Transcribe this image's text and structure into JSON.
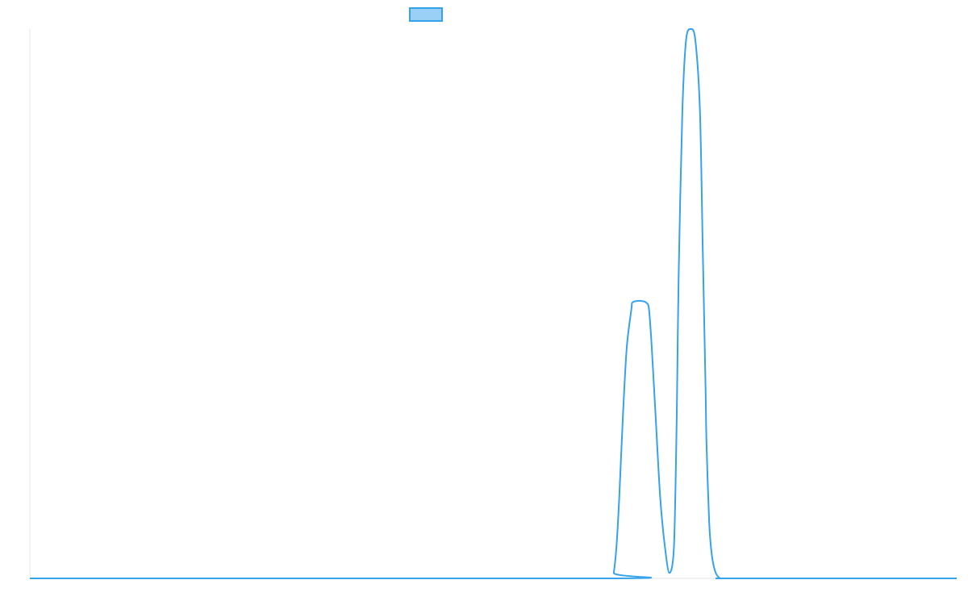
{
  "chart_data": {
    "type": "line",
    "title": "",
    "xlabel": "",
    "ylabel": "",
    "xlim": [
      0,
      1
    ],
    "ylim": [
      0,
      1
    ],
    "grid": false,
    "legend": {
      "placement": "top-center",
      "entries": [
        {
          "name": "",
          "color": "#36a2eb",
          "fill": "#9ad0f5"
        }
      ]
    },
    "series": [
      {
        "color": "#36a2eb",
        "x": [
          0,
          0.628,
          0.63,
          0.633,
          0.636,
          0.64,
          0.644,
          0.649,
          0.65,
          0.655,
          0.66,
          0.665,
          0.668,
          0.671,
          0.675,
          0.68,
          0.685,
          0.69,
          0.695,
          0.698,
          0.7,
          0.704,
          0.708,
          0.713,
          0.718,
          0.723,
          0.726,
          0.729,
          0.73,
          0.733,
          0.736,
          0.74,
          0.745,
          0.75,
          0.755,
          0.757,
          1.0
        ],
        "y": [
          0,
          0,
          0.01,
          0.06,
          0.15,
          0.3,
          0.42,
          0.49,
          0.502,
          0.505,
          0.505,
          0.502,
          0.49,
          0.42,
          0.3,
          0.15,
          0.06,
          0.01,
          0.06,
          0.3,
          0.55,
          0.85,
          0.98,
          1.0,
          0.98,
          0.85,
          0.6,
          0.35,
          0.25,
          0.1,
          0.04,
          0.01,
          0,
          0,
          0,
          0,
          0
        ]
      }
    ]
  }
}
